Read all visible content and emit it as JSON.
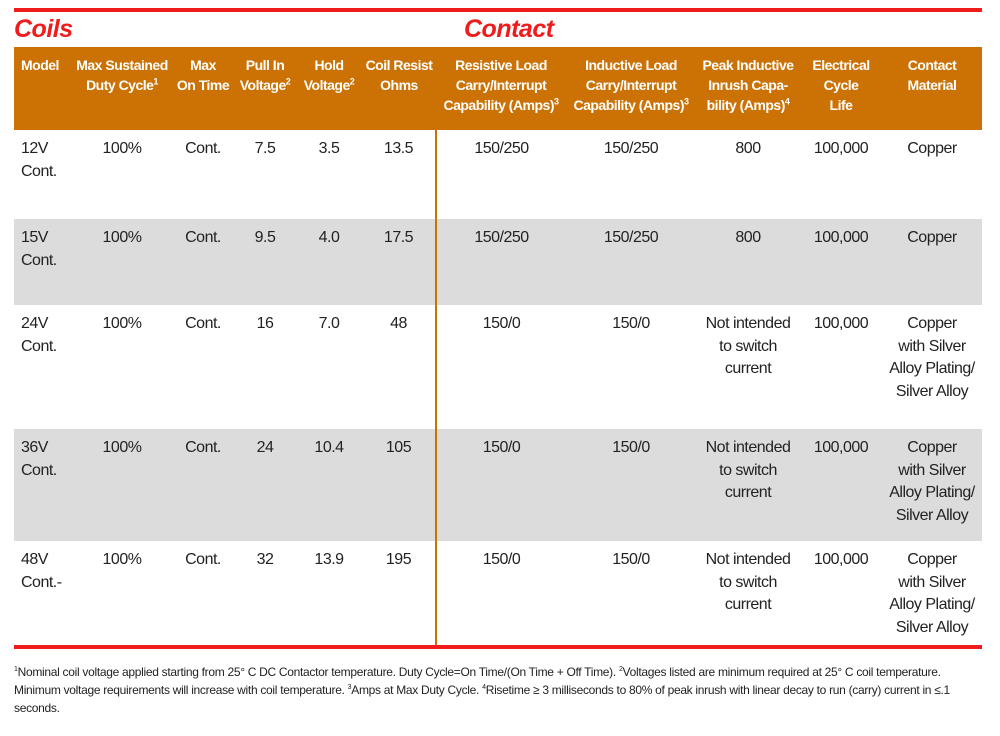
{
  "sections": {
    "coils": "Coils",
    "contact": "Contact"
  },
  "headers": [
    {
      "lines": [
        "Model"
      ],
      "sup": ""
    },
    {
      "lines": [
        "Max Sustained",
        "Duty Cycle"
      ],
      "sup": "1"
    },
    {
      "lines": [
        "Max",
        "On Time"
      ],
      "sup": ""
    },
    {
      "lines": [
        "Pull In",
        "Voltage"
      ],
      "sup": "2"
    },
    {
      "lines": [
        "Hold",
        "Voltage"
      ],
      "sup": "2"
    },
    {
      "lines": [
        "Coil Resist",
        "Ohms"
      ],
      "sup": ""
    },
    {
      "lines": [
        "Resistive Load",
        "Carry/Interrupt",
        "Capability (Amps)"
      ],
      "sup": "3"
    },
    {
      "lines": [
        "Inductive Load",
        "Carry/Interrupt",
        "Capability (Amps)"
      ],
      "sup": "3"
    },
    {
      "lines": [
        "Peak Inductive",
        "Inrush Capa-",
        "bility (Amps)"
      ],
      "sup": "4"
    },
    {
      "lines": [
        "Electrical",
        "Cycle",
        "Life"
      ],
      "sup": ""
    },
    {
      "lines": [
        "Contact",
        "Material"
      ],
      "sup": ""
    }
  ],
  "rows": [
    [
      [
        "12V",
        "Cont."
      ],
      [
        "100%"
      ],
      [
        "Cont."
      ],
      [
        "7.5"
      ],
      [
        "3.5"
      ],
      [
        "13.5"
      ],
      [
        "150/250"
      ],
      [
        "150/250"
      ],
      [
        "800"
      ],
      [
        "100,000"
      ],
      [
        "Copper"
      ]
    ],
    [
      [
        "15V",
        "Cont."
      ],
      [
        "100%"
      ],
      [
        "Cont."
      ],
      [
        "9.5"
      ],
      [
        "4.0"
      ],
      [
        "17.5"
      ],
      [
        "150/250"
      ],
      [
        "150/250"
      ],
      [
        "800"
      ],
      [
        "100,000"
      ],
      [
        "Copper"
      ]
    ],
    [
      [
        "24V",
        "Cont."
      ],
      [
        "100%"
      ],
      [
        "Cont."
      ],
      [
        "16"
      ],
      [
        "7.0"
      ],
      [
        "48"
      ],
      [
        "150/0"
      ],
      [
        "150/0"
      ],
      [
        "Not intended",
        "to switch",
        "current"
      ],
      [
        "100,000"
      ],
      [
        "Copper",
        "with Silver",
        "Alloy Plating/",
        "Silver Alloy"
      ]
    ],
    [
      [
        "36V",
        "Cont."
      ],
      [
        "100%"
      ],
      [
        "Cont."
      ],
      [
        "24"
      ],
      [
        "10.4"
      ],
      [
        "105"
      ],
      [
        "150/0"
      ],
      [
        "150/0"
      ],
      [
        "Not intended",
        "to switch",
        "current"
      ],
      [
        "100,000"
      ],
      [
        "Copper",
        "with Silver",
        "Alloy Plating/",
        "Silver Alloy"
      ]
    ],
    [
      [
        "48V",
        "Cont.-"
      ],
      [
        "100%"
      ],
      [
        "Cont."
      ],
      [
        "32"
      ],
      [
        "13.9"
      ],
      [
        "195"
      ],
      [
        "150/0"
      ],
      [
        "150/0"
      ],
      [
        "Not intended",
        "to switch",
        "current"
      ],
      [
        "100,000"
      ],
      [
        "Copper",
        "with Silver",
        "Alloy Plating/",
        "Silver Alloy"
      ]
    ]
  ],
  "footnote": [
    {
      "sup": "1",
      "text": "Nominal coil voltage applied starting from 25° C DC Contactor temperature.  Duty Cycle=On Time/(On Time + Off Time). "
    },
    {
      "sup": "2",
      "text": "Voltages listed are minimum required at 25° C coil temperature. Minimum voltage requirements will increase with coil temperature.  "
    },
    {
      "sup": "3",
      "text": "Amps at Max Duty Cycle.  "
    },
    {
      "sup": "4",
      "text": "Risetime ≥ 3 milliseconds to 80% of peak inrush with linear decay to run (carry) current in ≤.1 seconds."
    }
  ]
}
